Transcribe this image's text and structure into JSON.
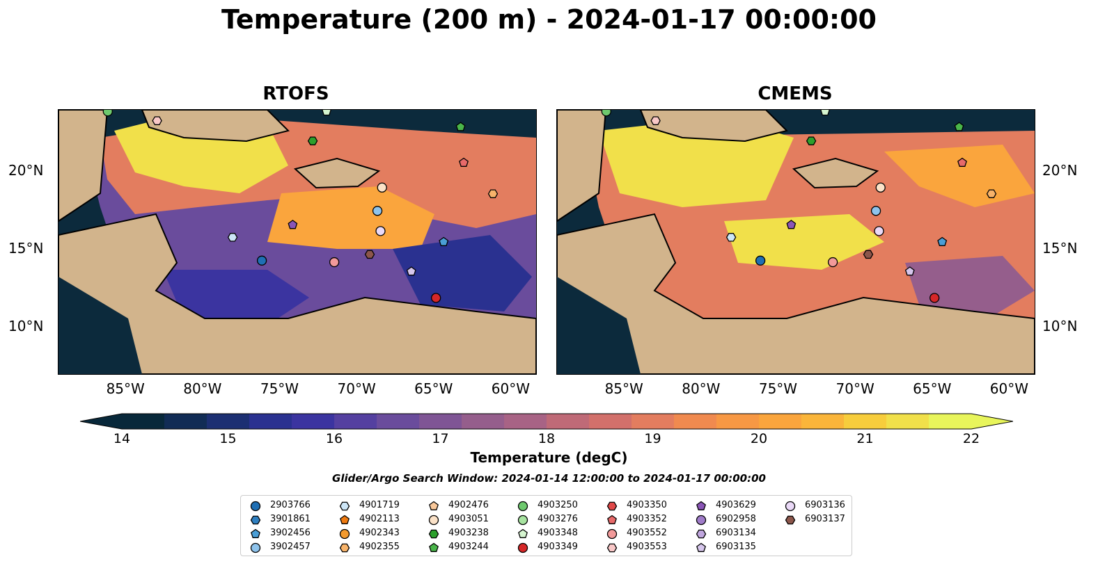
{
  "title": "Temperature (200 m) - 2024-01-17 00:00:00",
  "panels": [
    {
      "title": "RTOFS"
    },
    {
      "title": "CMEMS"
    }
  ],
  "axes": {
    "lon_labels": [
      "85°W",
      "80°W",
      "75°W",
      "70°W",
      "65°W",
      "60°W"
    ],
    "lat_labels": [
      "20°N",
      "15°N",
      "10°N"
    ],
    "lon_values": [
      -85,
      -80,
      -75,
      -70,
      -65,
      -60
    ],
    "lat_values": [
      20,
      15,
      10
    ],
    "lon_range": [
      -89.5,
      -58.5
    ],
    "lat_range": [
      7,
      24
    ]
  },
  "colorbar": {
    "label": "Temperature (degC)",
    "ticks": [
      "14",
      "15",
      "16",
      "17",
      "18",
      "19",
      "20",
      "21",
      "22"
    ],
    "colors": [
      "#08283a",
      "#112c55",
      "#1c2f72",
      "#2a3190",
      "#3b34a0",
      "#5440a0",
      "#6a4c9c",
      "#7f5595",
      "#955e8c",
      "#a86385",
      "#bf6a77",
      "#d2706b",
      "#e37d5f",
      "#f08a4f",
      "#f79844",
      "#faa53d",
      "#fab53a",
      "#f7cd3c",
      "#f1e04a",
      "#e8f55b"
    ]
  },
  "search_window": "Glider/Argo Search Window: 2024-01-14 12:00:00 to 2024-01-17 00:00:00",
  "map_colors": {
    "land": "#d2b48c",
    "shelf": "#94b4e0",
    "deep": "#0c2a3c"
  },
  "floats": [
    {
      "id": "2903766",
      "marker": "circle",
      "color": "#1f6fb4",
      "lon": -76.3,
      "lat": 14.3
    },
    {
      "id": "3901861",
      "marker": "hexagon",
      "color": "#2f7fc0",
      "lon": null,
      "lat": null
    },
    {
      "id": "3902456",
      "marker": "pentagon",
      "color": "#4a9ed6",
      "lon": -64.5,
      "lat": 15.5
    },
    {
      "id": "3902457",
      "marker": "circle",
      "color": "#8ec3ec",
      "lon": -68.8,
      "lat": 17.5
    },
    {
      "id": "4901719",
      "marker": "hexagon",
      "color": "#cde6f7",
      "lon": -78.2,
      "lat": 15.8
    },
    {
      "id": "4902113",
      "marker": "pentagon",
      "color": "#ee7a10",
      "lon": null,
      "lat": null
    },
    {
      "id": "4902343",
      "marker": "circle",
      "color": "#f39a2e",
      "lon": null,
      "lat": null
    },
    {
      "id": "4902355",
      "marker": "hexagon",
      "color": "#f7b36a",
      "lon": -61.3,
      "lat": 18.6
    },
    {
      "id": "4902476",
      "marker": "pentagon",
      "color": "#f9c89a",
      "lon": null,
      "lat": null
    },
    {
      "id": "4903051",
      "marker": "circle",
      "color": "#fbe2c8",
      "lon": -68.5,
      "lat": 19.0
    },
    {
      "id": "4903238",
      "marker": "hexagon",
      "color": "#2ca02c",
      "lon": -73.0,
      "lat": 22.0
    },
    {
      "id": "4903244",
      "marker": "pentagon",
      "color": "#4ab54a",
      "lon": -63.4,
      "lat": 22.9
    },
    {
      "id": "4903250",
      "marker": "circle",
      "color": "#6ec96e",
      "lon": -86.3,
      "lat": 23.9
    },
    {
      "id": "4903276",
      "marker": "circle",
      "color": "#a7e3a0",
      "lon": null,
      "lat": null
    },
    {
      "id": "4903348",
      "marker": "pentagon",
      "color": "#d6f5d0",
      "lon": -72.1,
      "lat": 23.9
    },
    {
      "id": "4903349",
      "marker": "circle",
      "color": "#d62728",
      "lon": -65.0,
      "lat": 11.9
    },
    {
      "id": "4903350",
      "marker": "hexagon",
      "color": "#e04848",
      "lon": null,
      "lat": null
    },
    {
      "id": "4903352",
      "marker": "pentagon",
      "color": "#e86a6a",
      "lon": -63.2,
      "lat": 20.6
    },
    {
      "id": "4903552",
      "marker": "circle",
      "color": "#f29a9a",
      "lon": -71.6,
      "lat": 14.2
    },
    {
      "id": "4903553",
      "marker": "hexagon",
      "color": "#f9c8c8",
      "lon": -83.1,
      "lat": 23.3
    },
    {
      "id": "4903629",
      "marker": "pentagon",
      "color": "#8a55b6",
      "lon": -74.3,
      "lat": 16.6
    },
    {
      "id": "6902958",
      "marker": "circle",
      "color": "#a07cc9",
      "lon": null,
      "lat": null
    },
    {
      "id": "6903134",
      "marker": "hexagon",
      "color": "#c0a6de",
      "lon": null,
      "lat": null
    },
    {
      "id": "6903135",
      "marker": "pentagon",
      "color": "#d6c6ec",
      "lon": -66.6,
      "lat": 13.6
    },
    {
      "id": "6903136",
      "marker": "circle",
      "color": "#ead9f7",
      "lon": -68.6,
      "lat": 16.2
    },
    {
      "id": "6903137",
      "marker": "hexagon",
      "color": "#8c564b",
      "lon": -69.3,
      "lat": 14.7
    }
  ]
}
